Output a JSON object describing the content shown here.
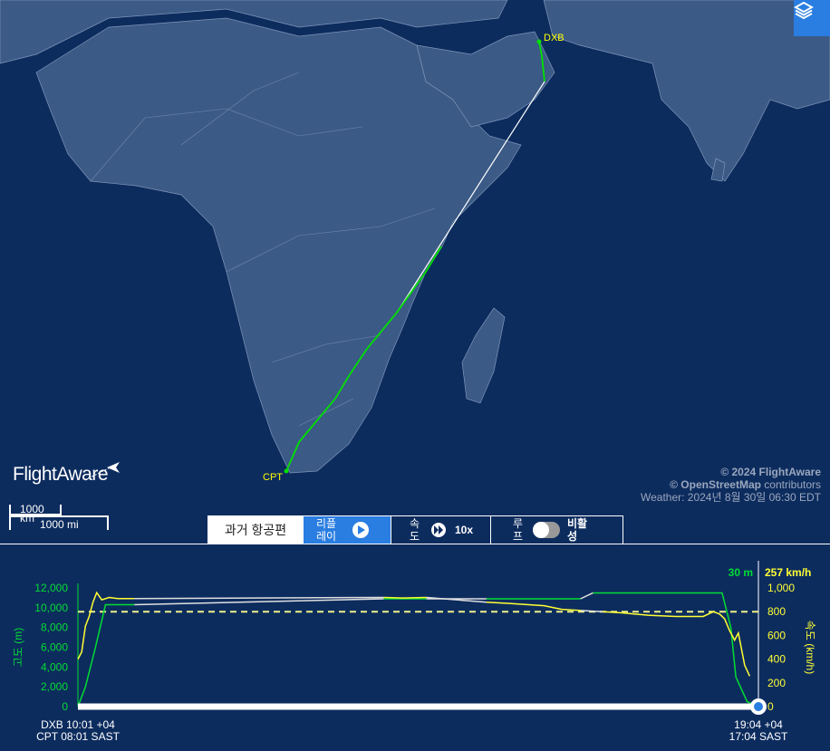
{
  "map": {
    "airports": [
      {
        "code": "DXB",
        "label_color": "#ffff00"
      },
      {
        "code": "CPT",
        "label_color": "#ffff00"
      }
    ],
    "route_color": "#00e000",
    "estimated_route_color": "#ffffff",
    "layers_icon": "layers-icon",
    "logo": "FlightAware",
    "attribution": {
      "line1": "© 2024 FlightAware",
      "line2_bold": "© OpenStreetMap",
      "line2_rest": " contributors",
      "weather": "Weather: 2024년 8월 30일 06:30 EDT"
    },
    "scale": {
      "km": "1000 km",
      "mi": "1000 mi"
    }
  },
  "controls": {
    "title": "과거 항공편",
    "replay": "리플레이",
    "speed_label": "속도",
    "speed_value": "10x",
    "loop_label": "루프",
    "loop_state": "비활성",
    "loop_enabled": false
  },
  "chart_data": {
    "type": "line",
    "xlabel_start": [
      "DXB 10:01 +04",
      "CPT 08:01 SAST"
    ],
    "xlabel_end": [
      "19:04 +04",
      "17:04 SAST"
    ],
    "x_range": [
      "10:01",
      "19:04"
    ],
    "y_left": {
      "label": "고도 (m)",
      "ticks": [
        "0",
        "2,000",
        "4,000",
        "6,000",
        "8,000",
        "10,000",
        "12,000"
      ],
      "range": [
        0,
        12000
      ],
      "color": "#00dd33",
      "current": "30 m"
    },
    "y_right": {
      "label": "속도 (km/h)",
      "ticks": [
        "0",
        "200",
        "400",
        "600",
        "800",
        "1,000"
      ],
      "range": [
        0,
        1000
      ],
      "color": "#ffff33",
      "current": "257 km/h"
    },
    "reference_line": {
      "axis": "speed",
      "value": 800,
      "style": "dashed"
    },
    "progress": 1.0,
    "series": [
      {
        "name": "고도 (m)",
        "axis": "left",
        "color": "#00dd33",
        "segments": [
          [
            [
              "10:01",
              0
            ],
            [
              "10:07",
              2000
            ],
            [
              "10:15",
              6000
            ],
            [
              "10:23",
              10300
            ],
            [
              "10:46",
              10300
            ]
          ],
          [
            [
              "14:05",
              10900
            ],
            [
              "14:39",
              10900
            ]
          ],
          [
            [
              "15:27",
              10900
            ],
            [
              "16:42",
              10900
            ]
          ],
          [
            [
              "16:52",
              11500
            ],
            [
              "18:35",
              11500
            ],
            [
              "18:42",
              8000
            ],
            [
              "18:46",
              3000
            ],
            [
              "18:55",
              500
            ],
            [
              "19:04",
              30
            ]
          ]
        ]
      },
      {
        "name": "속도 (km/h)",
        "axis": "right",
        "color": "#ffff33",
        "segments": [
          [
            [
              "10:01",
              400
            ],
            [
              "10:04",
              460
            ],
            [
              "10:07",
              680
            ],
            [
              "10:10",
              760
            ],
            [
              "10:13",
              880
            ],
            [
              "10:16",
              960
            ],
            [
              "10:20",
              900
            ],
            [
              "10:26",
              920
            ],
            [
              "10:33",
              910
            ],
            [
              "10:46",
              910
            ]
          ],
          [
            [
              "14:05",
              920
            ],
            [
              "14:20",
              915
            ],
            [
              "14:39",
              920
            ]
          ],
          [
            [
              "15:27",
              880
            ],
            [
              "15:44",
              870
            ],
            [
              "16:13",
              850
            ],
            [
              "16:27",
              820
            ],
            [
              "16:42",
              810
            ]
          ],
          [
            [
              "17:00",
              800
            ],
            [
              "17:15",
              790
            ],
            [
              "17:36",
              770
            ],
            [
              "17:58",
              760
            ],
            [
              "18:20",
              760
            ],
            [
              "18:28",
              800
            ],
            [
              "18:33",
              780
            ],
            [
              "18:37",
              740
            ],
            [
              "18:41",
              640
            ],
            [
              "18:45",
              560
            ],
            [
              "18:48",
              620
            ],
            [
              "18:53",
              350
            ],
            [
              "18:57",
              257
            ]
          ]
        ]
      }
    ]
  }
}
